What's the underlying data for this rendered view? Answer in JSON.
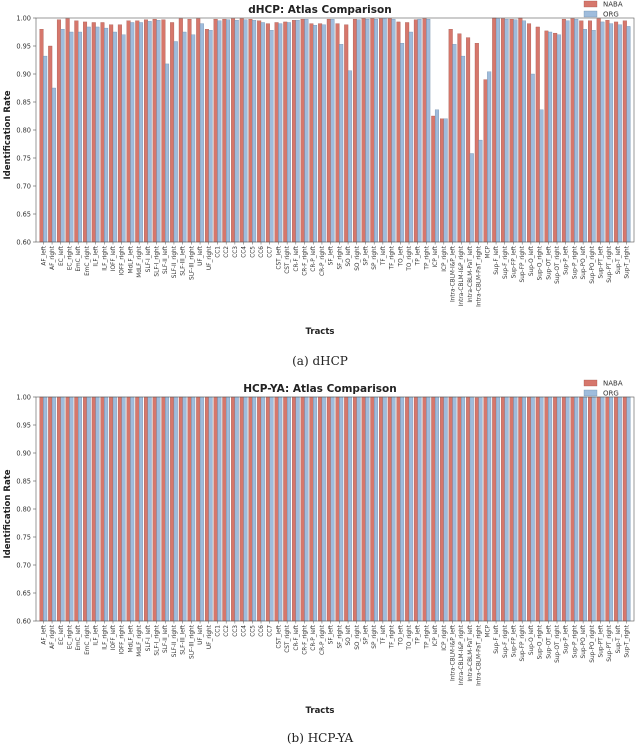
{
  "colors": {
    "naba": "#d6776c",
    "org": "#9fbcdc",
    "naba_edge": "#9c4a42",
    "org_edge": "#5f7f9f"
  },
  "captions": [
    "(a) dHCP",
    "(b) HCP-YA"
  ],
  "chart_data": [
    {
      "type": "bar",
      "title": "dHCP: Atlas Comparison",
      "xlabel": "Tracts",
      "ylabel": "Identification Rate",
      "ylim": [
        0.6,
        1.0
      ],
      "yticks": [
        "0.60",
        "0.65",
        "0.70",
        "0.75",
        "0.80",
        "0.85",
        "0.90",
        "0.95",
        "1.00"
      ],
      "legend_position": "top-right",
      "categories": [
        "AF_left",
        "AF_right",
        "EC_left",
        "EC_right",
        "EmC_left",
        "EmC_right",
        "ILF_left",
        "ILF_right",
        "IOFF_left",
        "IOFF_right",
        "MdLF_left",
        "MdLF_right",
        "SLF-I_left",
        "SLF-I_right",
        "SLF-II_left",
        "SLF-II_right",
        "SLF-III_left",
        "SLF-III_right",
        "UF_left",
        "UF_right",
        "CC1",
        "CC2",
        "CC3",
        "CC4",
        "CC5",
        "CC6",
        "CC7",
        "CST_left",
        "CST_right",
        "CR-F_left",
        "CR-F_right",
        "CR-P_left",
        "CR-P_right",
        "SF_left",
        "SF_right",
        "SO_left",
        "SO_right",
        "SP_left",
        "SP_right",
        "TF_left",
        "TF_right",
        "TO_left",
        "TO_right",
        "TP_left",
        "TP_right",
        "ICP_left",
        "ICP_right",
        "Intra-CBLM-I&P_left",
        "Intra-CBLM-I&P_right",
        "Intra-CBLM-PaT_left",
        "Intra-CBLM-PaT_right",
        "MCP",
        "Sup-F_left",
        "Sup-F_right",
        "Sup-FP_left",
        "Sup-FP_right",
        "Sup-O_left",
        "Sup-O_right",
        "Sup-OT_left",
        "Sup-OT_right",
        "Sup-P_left",
        "Sup-P_right",
        "Sup-PO_left",
        "Sup-PO_right",
        "Sup-PT_left",
        "Sup-PT_right",
        "Sup-T_left",
        "Sup-T_right"
      ],
      "series": [
        {
          "name": "NABA",
          "values": [
            0.98,
            0.95,
            0.997,
            0.999,
            0.995,
            0.993,
            0.992,
            0.992,
            0.988,
            0.988,
            0.995,
            0.995,
            0.997,
            0.998,
            0.997,
            0.992,
            0.999,
            0.998,
            0.999,
            0.98,
            0.998,
            0.998,
            0.999,
            0.999,
            0.998,
            0.995,
            0.99,
            0.992,
            0.993,
            0.996,
            0.998,
            0.99,
            0.99,
            0.998,
            0.99,
            0.988,
            0.998,
            0.999,
            0.999,
            0.999,
            0.999,
            0.993,
            0.992,
            0.997,
            0.999,
            0.825,
            0.82,
            0.98,
            0.972,
            0.965,
            0.955,
            0.89,
            1.0,
            0.999,
            0.998,
            1.0,
            0.99,
            0.984,
            0.977,
            0.973,
            0.998,
            0.999,
            0.995,
            0.995,
            0.999,
            0.996,
            0.993,
            0.995
          ]
        },
        {
          "name": "ORG",
          "values": [
            0.932,
            0.875,
            0.98,
            0.975,
            0.975,
            0.984,
            0.984,
            0.982,
            0.975,
            0.97,
            0.992,
            0.992,
            0.994,
            0.996,
            0.918,
            0.958,
            0.975,
            0.97,
            0.99,
            0.978,
            0.995,
            0.997,
            0.996,
            0.997,
            0.996,
            0.992,
            0.978,
            0.99,
            0.992,
            0.996,
            0.998,
            0.987,
            0.988,
            0.998,
            0.953,
            0.906,
            0.997,
            0.998,
            0.998,
            0.999,
            0.998,
            0.955,
            0.975,
            0.998,
            0.998,
            0.836,
            0.82,
            0.953,
            0.932,
            0.758,
            0.782,
            0.904,
            0.999,
            0.998,
            0.997,
            0.995,
            0.9,
            0.836,
            0.975,
            0.97,
            0.995,
            0.998,
            0.98,
            0.978,
            0.993,
            0.99,
            0.988,
            0.985
          ]
        }
      ]
    },
    {
      "type": "bar",
      "title": "HCP-YA: Atlas Comparison",
      "xlabel": "Tracts",
      "ylabel": "Identification Rate",
      "ylim": [
        0.6,
        1.0
      ],
      "yticks": [
        "0.60",
        "0.65",
        "0.70",
        "0.75",
        "0.80",
        "0.85",
        "0.90",
        "0.95",
        "1.00"
      ],
      "legend_position": "top-right",
      "categories": [
        "AF_left",
        "AF_right",
        "EC_left",
        "EC_right",
        "EmC_left",
        "EmC_right",
        "ILF_left",
        "ILF_right",
        "IOFF_left",
        "IOFF_right",
        "MdLF_left",
        "MdLF_right",
        "SLF-I_left",
        "SLF-I_right",
        "SLF-II_left",
        "SLF-II_right",
        "SLF-III_left",
        "SLF-III_right",
        "UF_left",
        "UF_right",
        "CC1",
        "CC2",
        "CC3",
        "CC4",
        "CC5",
        "CC6",
        "CC7",
        "CST_left",
        "CST_right",
        "CR-F_left",
        "CR-F_right",
        "CR-P_left",
        "CR-P_right",
        "SF_left",
        "SF_right",
        "SO_left",
        "SO_right",
        "SP_left",
        "SP_right",
        "TF_left",
        "TF_right",
        "TO_left",
        "TO_right",
        "TP_left",
        "TP_right",
        "ICP_left",
        "ICP_right",
        "Intra-CBLM-I&P_left",
        "Intra-CBLM-I&P_right",
        "Intra-CBLM-PaT_left",
        "Intra-CBLM-PaT_right",
        "MCP",
        "Sup-F_left",
        "Sup-F_right",
        "Sup-FP_left",
        "Sup-FP_right",
        "Sup-O_left",
        "Sup-O_right",
        "Sup-OT_left",
        "Sup-OT_right",
        "Sup-P_left",
        "Sup-P_right",
        "Sup-PO_left",
        "Sup-PO_right",
        "Sup-PT_left",
        "Sup-PT_right",
        "Sup-T_left",
        "Sup-T_right"
      ],
      "series": [
        {
          "name": "NABA",
          "values": [
            1,
            1,
            1,
            1,
            1,
            1,
            1,
            1,
            1,
            1,
            1,
            1,
            1,
            1,
            1,
            1,
            1,
            1,
            1,
            1,
            1,
            1,
            1,
            1,
            1,
            1,
            1,
            1,
            1,
            1,
            1,
            1,
            1,
            1,
            1,
            1,
            1,
            1,
            1,
            1,
            1,
            1,
            1,
            1,
            1,
            1,
            1,
            1,
            1,
            1,
            0.999,
            1,
            1,
            1,
            1,
            1,
            1,
            1,
            1,
            1,
            1,
            1,
            1,
            1,
            1,
            1,
            1,
            1
          ]
        },
        {
          "name": "ORG",
          "values": [
            1,
            1,
            1,
            1,
            1,
            1,
            1,
            1,
            1,
            1,
            1,
            1,
            1,
            1,
            1,
            1,
            1,
            1,
            1,
            1,
            1,
            1,
            1,
            1,
            1,
            1,
            1,
            1,
            1,
            1,
            1,
            1,
            1,
            1,
            1,
            1,
            1,
            1,
            1,
            1,
            1,
            1,
            1,
            1,
            1,
            1,
            1,
            1,
            1,
            1,
            0.999,
            1,
            1,
            1,
            1,
            1,
            1,
            1,
            1,
            1,
            1,
            1,
            1,
            1,
            1,
            1,
            1,
            1
          ]
        }
      ]
    }
  ]
}
